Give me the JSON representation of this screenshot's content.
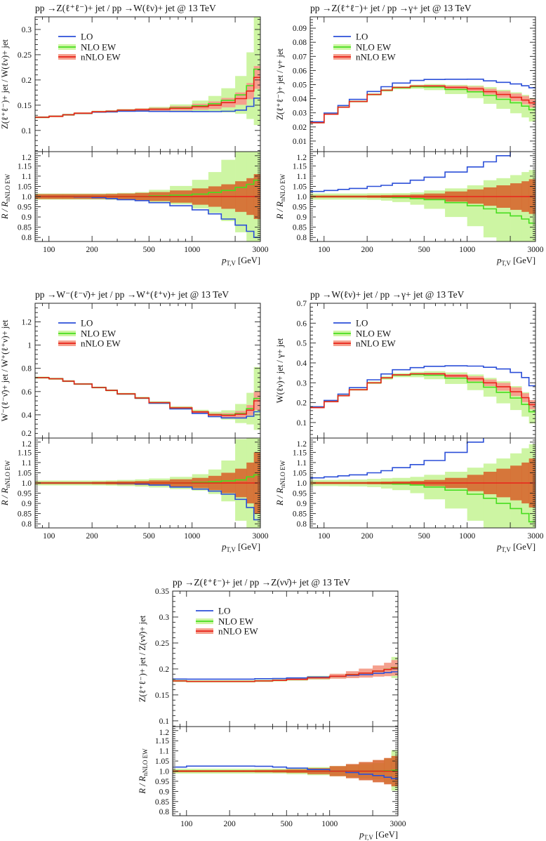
{
  "colors": {
    "lo": "#2b4fd8",
    "nlo": "#46dd1f",
    "nnlo": "#e8231a",
    "nlo_band": "#cdf5a3",
    "nnlo_band_upper": "#f5a08e",
    "nnlo_band_ratio": "rgba(215,95,40,0.85)"
  },
  "chart_data": [
    {
      "type": "line",
      "title": "pp →Z(ℓ⁺ℓ⁻)+ jet / pp →W(ℓν)+ jet @ 13 TeV",
      "ylabel": "Z(ℓ⁺ℓ⁻)+ jet / W(ℓν)+ jet",
      "ratio_ylabel": {
        "main": "R / R",
        "sub": "nNLO EW"
      },
      "xlabel": {
        "main": "p",
        "sub": "T,V",
        "unit": " [GeV]"
      },
      "xscale": "log",
      "xlim": [
        80,
        3000
      ],
      "xticks": [
        "100",
        "200",
        "500",
        "1000",
        "3000"
      ],
      "ylim": [
        0.058,
        0.325
      ],
      "yticks": [
        "0.1",
        "0.15",
        "0.2",
        "0.25",
        "0.3"
      ],
      "ratio_ylim": [
        0.78,
        1.22
      ],
      "ratio_yticks": [
        "0.8",
        "0.85",
        "0.9",
        "0.95",
        "1.0",
        "1.05",
        "1.1",
        "1.15",
        "1.2"
      ],
      "legend": [
        "LO",
        "NLO EW",
        "nNLO EW"
      ],
      "legend_position": "top-left",
      "x_bin_edges": [
        80,
        100,
        125,
        150,
        200,
        250,
        300,
        400,
        500,
        700,
        1000,
        1300,
        1600,
        2000,
        2400,
        2700,
        3000
      ],
      "nnlo": [
        0.126,
        0.128,
        0.131,
        0.134,
        0.137,
        0.138,
        0.14,
        0.141,
        0.142,
        0.144,
        0.147,
        0.15,
        0.155,
        0.163,
        0.178,
        0.205
      ],
      "lo_ratio": [
        1.0,
        1.0,
        1.0,
        0.998,
        0.995,
        0.99,
        0.985,
        0.98,
        0.97,
        0.955,
        0.935,
        0.915,
        0.89,
        0.86,
        0.83,
        0.8
      ],
      "nlo_ratio": [
        1.0,
        1.0,
        1.0,
        1.0,
        1.0,
        1.0,
        1.0,
        1.0,
        1.003,
        1.007,
        1.012,
        1.02,
        1.03,
        1.045,
        1.06,
        1.08
      ],
      "nnlo_unc": [
        0.012,
        0.012,
        0.012,
        0.012,
        0.012,
        0.013,
        0.015,
        0.018,
        0.022,
        0.03,
        0.04,
        0.05,
        0.06,
        0.075,
        0.09,
        0.11
      ],
      "nlo_unc": [
        0.015,
        0.015,
        0.015,
        0.015,
        0.015,
        0.016,
        0.018,
        0.022,
        0.03,
        0.045,
        0.07,
        0.1,
        0.15,
        0.22,
        0.35,
        0.5
      ]
    },
    {
      "type": "line",
      "title": "pp →Z(ℓ⁺ℓ⁻)+ jet / pp →γ+ jet @ 13 TeV",
      "ylabel": "Z(ℓ⁺ℓ⁻)+ jet / γ+ jet",
      "ratio_ylabel": {
        "main": "R / R",
        "sub": "nNLO EW"
      },
      "xlabel": {
        "main": "p",
        "sub": "T,V",
        "unit": " [GeV]"
      },
      "xscale": "log",
      "xlim": [
        80,
        3000
      ],
      "xticks": [
        "100",
        "200",
        "500",
        "1000",
        "3000"
      ],
      "ylim": [
        0.0025,
        0.098
      ],
      "yticks": [
        "0.01",
        "0.02",
        "0.03",
        "0.04",
        "0.05",
        "0.06",
        "0.07",
        "0.08",
        "0.09"
      ],
      "ratio_ylim": [
        0.78,
        1.22
      ],
      "ratio_yticks": [
        "0.8",
        "0.85",
        "0.9",
        "0.95",
        "1.0",
        "1.05",
        "1.1",
        "1.15",
        "1.2"
      ],
      "legend": [
        "LO",
        "NLO EW",
        "nNLO EW"
      ],
      "legend_position": "top-left",
      "x_bin_edges": [
        80,
        100,
        125,
        150,
        200,
        250,
        300,
        400,
        500,
        700,
        1000,
        1300,
        1600,
        2000,
        2400,
        2700,
        3000
      ],
      "nnlo": [
        0.023,
        0.029,
        0.034,
        0.038,
        0.043,
        0.046,
        0.048,
        0.049,
        0.049,
        0.048,
        0.047,
        0.045,
        0.043,
        0.041,
        0.039,
        0.037
      ],
      "lo_ratio": [
        1.025,
        1.03,
        1.035,
        1.04,
        1.05,
        1.055,
        1.065,
        1.08,
        1.095,
        1.12,
        1.145,
        1.17,
        1.2,
        1.23,
        1.26,
        1.29
      ],
      "nlo_ratio": [
        1.0,
        1.0,
        1.0,
        1.0,
        1.0,
        0.998,
        0.995,
        0.99,
        0.985,
        0.97,
        0.955,
        0.94,
        0.92,
        0.905,
        0.89,
        0.87
      ],
      "nnlo_unc": [
        0.005,
        0.005,
        0.005,
        0.005,
        0.006,
        0.007,
        0.008,
        0.01,
        0.015,
        0.025,
        0.035,
        0.045,
        0.055,
        0.065,
        0.075,
        0.085
      ],
      "nlo_unc": [
        0.015,
        0.015,
        0.015,
        0.015,
        0.016,
        0.018,
        0.022,
        0.03,
        0.045,
        0.07,
        0.1,
        0.14,
        0.17,
        0.2,
        0.23,
        0.26
      ]
    },
    {
      "type": "line",
      "title": "pp →W⁻(ℓ⁻ν̄)+ jet / pp →W⁺(ℓ⁺ν)+ jet @ 13 TeV",
      "ylabel": "W⁻(ℓ⁻ν̄)+ jet / W⁺(ℓ⁺ν)+ jet",
      "ratio_ylabel": {
        "main": "R / R",
        "sub": "nNLO EW"
      },
      "xlabel": {
        "main": "p",
        "sub": "T,V",
        "unit": " [GeV]"
      },
      "xscale": "log",
      "xlim": [
        80,
        3000
      ],
      "xticks": [
        "100",
        "200",
        "500",
        "1000",
        "3000"
      ],
      "ylim": [
        0.2,
        1.36
      ],
      "yticks": [
        "0.2",
        "0.4",
        "0.6",
        "0.8",
        "1",
        "1.2"
      ],
      "ratio_ylim": [
        0.78,
        1.22
      ],
      "ratio_yticks": [
        "0.8",
        "0.85",
        "0.9",
        "0.95",
        "1.0",
        "1.05",
        "1.1",
        "1.15",
        "1.2"
      ],
      "legend": [
        "LO",
        "NLO EW",
        "nNLO EW"
      ],
      "legend_position": "top-left",
      "x_bin_edges": [
        80,
        100,
        125,
        150,
        200,
        250,
        300,
        400,
        500,
        700,
        1000,
        1300,
        1600,
        2000,
        2400,
        2700,
        3000
      ],
      "nnlo": [
        0.72,
        0.71,
        0.69,
        0.665,
        0.635,
        0.61,
        0.58,
        0.545,
        0.505,
        0.46,
        0.425,
        0.4,
        0.395,
        0.405,
        0.44,
        0.52
      ],
      "lo_ratio": [
        1.0,
        1.0,
        1.0,
        1.0,
        1.0,
        1.0,
        0.998,
        0.995,
        0.99,
        0.98,
        0.97,
        0.96,
        0.945,
        0.92,
        0.88,
        0.82
      ],
      "nlo_ratio": [
        1.0,
        1.0,
        1.0,
        1.0,
        1.0,
        1.0,
        1.0,
        1.0,
        1.0,
        1.0,
        1.003,
        1.006,
        1.01,
        1.015,
        1.03,
        1.04
      ],
      "nnlo_unc": [
        0.005,
        0.005,
        0.005,
        0.005,
        0.006,
        0.007,
        0.008,
        0.01,
        0.013,
        0.018,
        0.025,
        0.035,
        0.05,
        0.07,
        0.1,
        0.15
      ],
      "nlo_unc": [
        0.012,
        0.012,
        0.012,
        0.012,
        0.012,
        0.013,
        0.015,
        0.018,
        0.022,
        0.03,
        0.04,
        0.06,
        0.1,
        0.2,
        0.3,
        0.5
      ]
    },
    {
      "type": "line",
      "title": "pp →W(ℓν)+ jet / pp →γ+ jet @ 13 TeV",
      "ylabel": "W(ℓν)+ jet / γ+ jet",
      "ratio_ylabel": {
        "main": "R / R",
        "sub": "nNLO EW"
      },
      "xlabel": {
        "main": "p",
        "sub": "T,V",
        "unit": " [GeV]"
      },
      "xscale": "log",
      "xlim": [
        80,
        3000
      ],
      "xticks": [
        "100",
        "200",
        "500",
        "1000",
        "3000"
      ],
      "ylim": [
        0.022,
        0.7
      ],
      "yticks": [
        "0.1",
        "0.2",
        "0.3",
        "0.4",
        "0.5",
        "0.6",
        "0.7"
      ],
      "ratio_ylim": [
        0.78,
        1.22
      ],
      "ratio_yticks": [
        "0.8",
        "0.85",
        "0.9",
        "0.95",
        "1.0",
        "1.05",
        "1.1",
        "1.15",
        "1.2"
      ],
      "legend": [
        "LO",
        "NLO EW",
        "nNLO EW"
      ],
      "legend_position": "top-left",
      "x_bin_edges": [
        80,
        100,
        125,
        150,
        200,
        250,
        300,
        400,
        500,
        700,
        1000,
        1300,
        1600,
        2000,
        2400,
        2700,
        3000
      ],
      "nnlo": [
        0.175,
        0.205,
        0.235,
        0.265,
        0.3,
        0.325,
        0.34,
        0.345,
        0.345,
        0.335,
        0.32,
        0.3,
        0.28,
        0.255,
        0.225,
        0.19
      ],
      "lo_ratio": [
        1.025,
        1.03,
        1.035,
        1.04,
        1.05,
        1.06,
        1.075,
        1.09,
        1.11,
        1.15,
        1.2,
        1.26,
        1.32,
        1.38,
        1.45,
        1.5
      ],
      "nlo_ratio": [
        1.0,
        1.0,
        1.0,
        1.0,
        1.0,
        0.998,
        0.995,
        0.99,
        0.98,
        0.965,
        0.945,
        0.925,
        0.9,
        0.875,
        0.85,
        0.81
      ],
      "nnlo_unc": [
        0.005,
        0.005,
        0.005,
        0.005,
        0.006,
        0.007,
        0.008,
        0.01,
        0.015,
        0.025,
        0.04,
        0.055,
        0.07,
        0.085,
        0.1,
        0.12
      ],
      "nlo_unc": [
        0.015,
        0.015,
        0.016,
        0.017,
        0.02,
        0.025,
        0.03,
        0.04,
        0.06,
        0.09,
        0.13,
        0.17,
        0.22,
        0.27,
        0.32,
        0.38
      ]
    },
    {
      "type": "line",
      "title": "pp →Z(ℓ⁺ℓ⁻)+ jet / pp →Z(νν̄)+ jet @ 13 TeV",
      "ylabel": "Z(ℓ⁺ℓ⁻)+ jet / Z(νν̄)+ jet",
      "ratio_ylabel": {
        "main": "R / R",
        "sub": "nNLO EW"
      },
      "xlabel": {
        "main": "p",
        "sub": "T,V",
        "unit": " [GeV]"
      },
      "xscale": "log",
      "xlim": [
        80,
        3000
      ],
      "xticks": [
        "100",
        "200",
        "500",
        "1000",
        "3000"
      ],
      "ylim": [
        0.089,
        0.35
      ],
      "yticks": [
        "0.1",
        "0.15",
        "0.2",
        "0.25",
        "0.3",
        "0.35"
      ],
      "ratio_ylim": [
        0.78,
        1.22
      ],
      "ratio_yticks": [
        "0.8",
        "0.85",
        "0.9",
        "0.95",
        "1.0",
        "1.05",
        "1.1",
        "1.15",
        "1.2"
      ],
      "legend": [
        "LO",
        "NLO EW",
        "nNLO EW"
      ],
      "legend_position": "top-left",
      "x_bin_edges": [
        80,
        100,
        125,
        150,
        200,
        250,
        300,
        400,
        500,
        700,
        1000,
        1300,
        1600,
        2000,
        2400,
        2700,
        3000
      ],
      "nnlo": [
        0.177,
        0.176,
        0.176,
        0.176,
        0.176,
        0.176,
        0.177,
        0.178,
        0.18,
        0.183,
        0.186,
        0.189,
        0.192,
        0.196,
        0.199,
        0.202
      ],
      "lo_ratio": [
        1.02,
        1.025,
        1.025,
        1.025,
        1.025,
        1.025,
        1.024,
        1.02,
        1.015,
        1.008,
        1.0,
        0.993,
        0.985,
        0.978,
        0.97,
        0.963
      ],
      "nlo_ratio": [
        1.0,
        1.0,
        1.0,
        1.0,
        1.0,
        1.0,
        1.0,
        1.0,
        1.0,
        1.0,
        1.0,
        1.0,
        1.0,
        1.0,
        1.002,
        1.004
      ],
      "nnlo_unc": [
        0.005,
        0.005,
        0.005,
        0.005,
        0.005,
        0.005,
        0.006,
        0.007,
        0.009,
        0.015,
        0.025,
        0.035,
        0.045,
        0.055,
        0.065,
        0.075
      ],
      "nlo_unc": [
        0.012,
        0.012,
        0.012,
        0.012,
        0.012,
        0.012,
        0.012,
        0.012,
        0.015,
        0.02,
        0.025,
        0.03,
        0.035,
        0.04,
        0.06,
        0.1
      ]
    }
  ]
}
